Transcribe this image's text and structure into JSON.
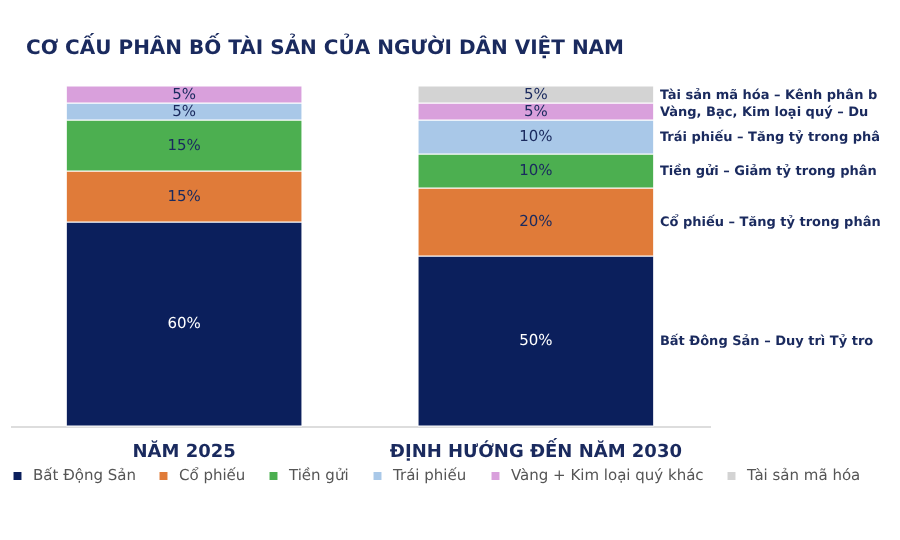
{
  "chart_data": {
    "type": "bar",
    "stacked": true,
    "title": "CƠ CẤU PHÂN BỐ TÀI SẢN CỦA NGƯỜI DÂN VIỆT NAM",
    "categories": [
      "NĂM 2025",
      "ĐỊNH HƯỚNG ĐẾN NĂM 2030"
    ],
    "series": [
      {
        "name": "Bất Động Sản",
        "color": "#0b1f5c",
        "values": [
          60,
          50
        ],
        "value_labels": [
          "60%",
          "50%"
        ]
      },
      {
        "name": "Cổ phiếu",
        "color": "#e07b39",
        "values": [
          15,
          20
        ],
        "value_labels": [
          "15%",
          "20%"
        ]
      },
      {
        "name": "Tiền gửi",
        "color": "#4caf50",
        "values": [
          15,
          10
        ],
        "value_labels": [
          "15%",
          "10%"
        ]
      },
      {
        "name": "Trái phiếu",
        "color": "#a9c8e8",
        "values": [
          5,
          10
        ],
        "value_labels": [
          "5%",
          "10%"
        ]
      },
      {
        "name": "Vàng + Kim loại quý khác",
        "color": "#d9a0dc",
        "values": [
          5,
          5
        ],
        "value_labels": [
          "5%",
          "5%"
        ]
      },
      {
        "name": "Tài sản mã hóa",
        "color": "#d3d3d3",
        "values": [
          null,
          5
        ],
        "value_labels": [
          null,
          "5%"
        ]
      }
    ],
    "annotations": [
      "Tài sản mã hóa – Kênh phân b",
      "Vàng, Bạc, Kim loại quý – Du",
      "Trái phiếu – Tăng tỷ trong phâ",
      "Tiền gửi – Giảm tỷ trong phân",
      "Cổ phiếu – Tăng tỷ trong phân",
      "Bất Đông Sản – Duy trì Tỷ tro"
    ],
    "legend": "bottom"
  }
}
